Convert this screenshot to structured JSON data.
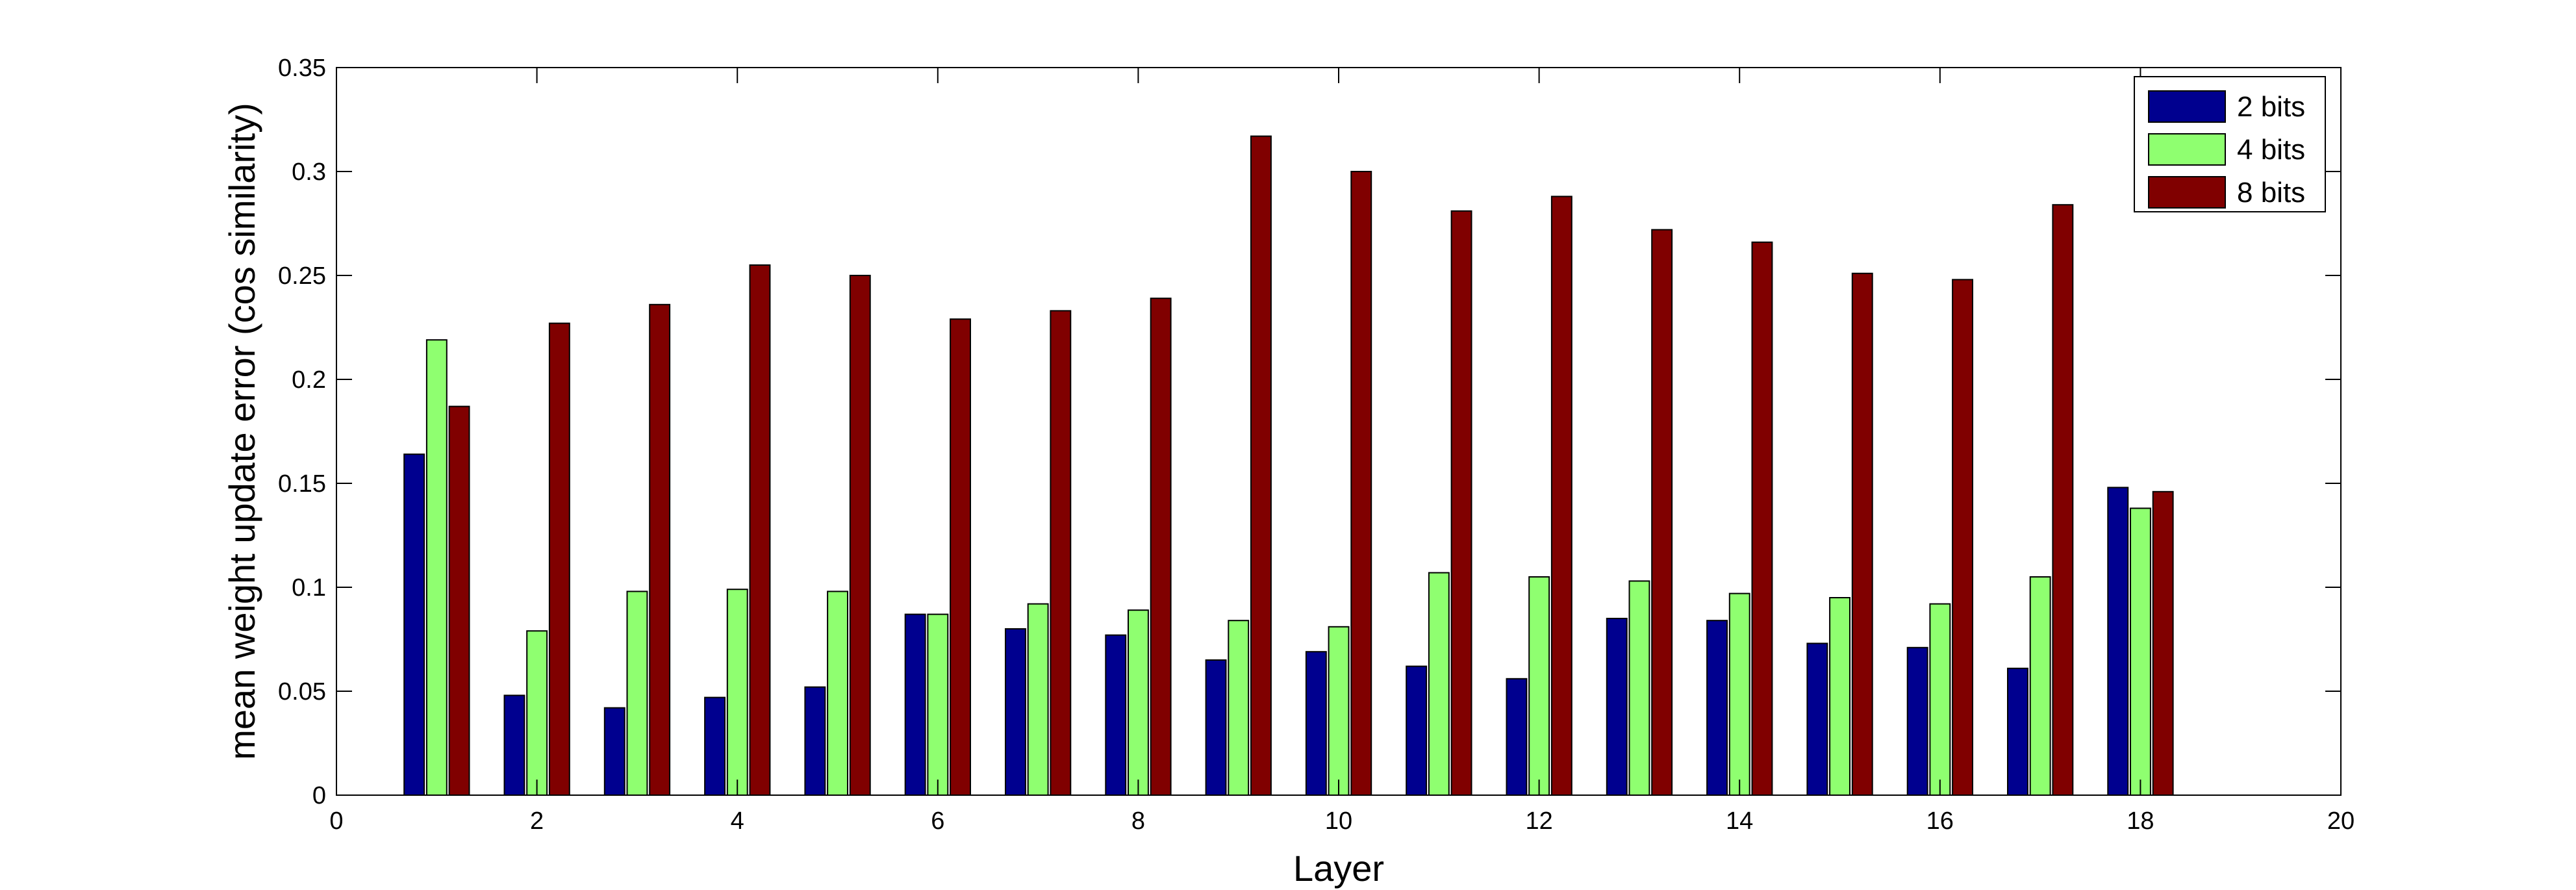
{
  "chart_data": {
    "type": "bar",
    "xlabel": "Layer",
    "ylabel": "mean weight update error (cos similarity)",
    "xlim": [
      0,
      20
    ],
    "ylim": [
      0,
      0.35
    ],
    "xticks": [
      "0",
      "2",
      "4",
      "6",
      "8",
      "10",
      "12",
      "14",
      "16",
      "18",
      "20"
    ],
    "yticks": [
      "0",
      "0.05",
      "0.1",
      "0.15",
      "0.2",
      "0.25",
      "0.3",
      "0.35"
    ],
    "grid": false,
    "legend_position": "top-right",
    "categories": [
      1,
      2,
      3,
      4,
      5,
      6,
      7,
      8,
      9,
      10,
      11,
      12,
      13,
      14,
      15,
      16,
      17,
      18
    ],
    "series": [
      {
        "name": "2 bits",
        "color": "#00008f",
        "values": [
          0.164,
          0.048,
          0.042,
          0.047,
          0.052,
          0.087,
          0.08,
          0.077,
          0.065,
          0.069,
          0.062,
          0.056,
          0.085,
          0.084,
          0.073,
          0.071,
          0.061,
          0.148
        ]
      },
      {
        "name": "4 bits",
        "color": "#8fff70",
        "values": [
          0.219,
          0.079,
          0.098,
          0.099,
          0.098,
          0.087,
          0.092,
          0.089,
          0.084,
          0.081,
          0.107,
          0.105,
          0.103,
          0.097,
          0.095,
          0.092,
          0.105,
          0.138
        ]
      },
      {
        "name": "8 bits",
        "color": "#800000",
        "values": [
          0.187,
          0.227,
          0.236,
          0.255,
          0.25,
          0.229,
          0.233,
          0.239,
          0.317,
          0.3,
          0.281,
          0.288,
          0.272,
          0.266,
          0.251,
          0.248,
          0.284,
          0.146
        ]
      }
    ]
  }
}
